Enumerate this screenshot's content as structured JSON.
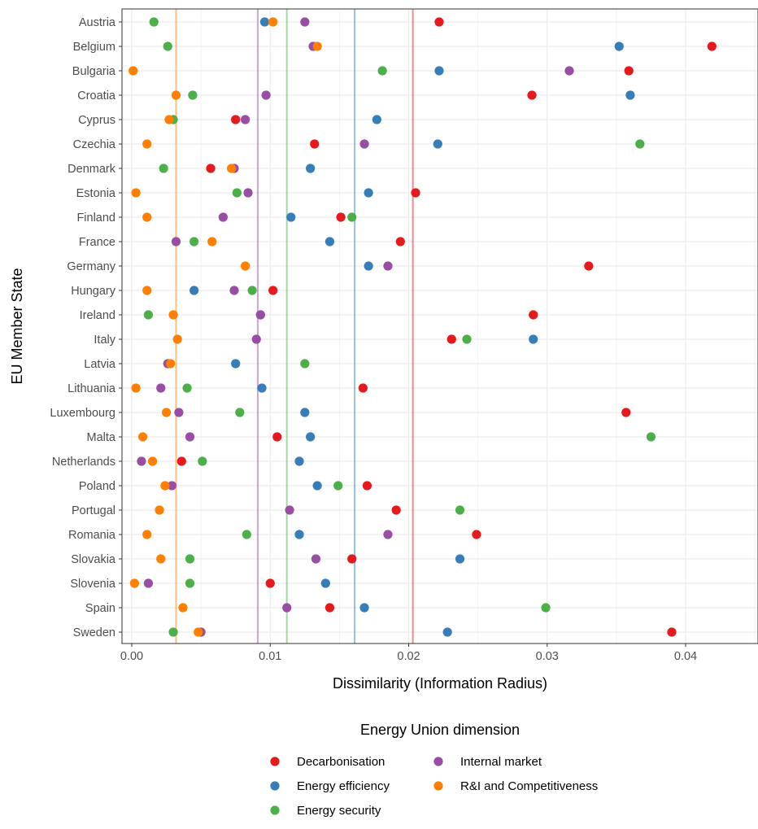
{
  "chart_data": {
    "type": "scatter",
    "xlabel": "Dissimilarity (Information Radius)",
    "ylabel": "EU Member State",
    "xlim": [
      -0.0007,
      0.0446
    ],
    "x_ticks": [
      0,
      0.01,
      0.02,
      0.03,
      0.04
    ],
    "x_tick_labels": [
      "0.00",
      "0.01",
      "0.02",
      "0.03",
      "0.04"
    ],
    "grid": true,
    "legend_title": "Energy Union dimension",
    "legend_position": "bottom",
    "categories": [
      "Austria",
      "Belgium",
      "Bulgaria",
      "Croatia",
      "Cyprus",
      "Czechia",
      "Denmark",
      "Estonia",
      "Finland",
      "France",
      "Germany",
      "Hungary",
      "Ireland",
      "Italy",
      "Latvia",
      "Lithuania",
      "Luxembourg",
      "Malta",
      "Netherlands",
      "Poland",
      "Portugal",
      "Romania",
      "Slovakia",
      "Slovenia",
      "Spain",
      "Sweden"
    ],
    "series": [
      {
        "name": "Decarbonisation",
        "color": "#e41a1c",
        "mean": 0.0203,
        "values": [
          0.0222,
          0.0419,
          0.0359,
          0.0289,
          0.0075,
          0.0132,
          0.0057,
          0.0205,
          0.0151,
          0.0194,
          0.033,
          0.0102,
          0.029,
          0.0231,
          null,
          0.0167,
          0.0357,
          0.0105,
          0.0036,
          0.017,
          0.0191,
          0.0249,
          0.0159,
          0.01,
          0.0143,
          0.039
        ]
      },
      {
        "name": "Energy efficiency",
        "color": "#377eb8",
        "mean": 0.0161,
        "values": [
          0.0096,
          0.0352,
          0.0222,
          0.036,
          0.0177,
          0.0221,
          0.0129,
          0.0171,
          0.0115,
          0.0143,
          0.0171,
          0.0045,
          0.0093,
          0.029,
          0.0075,
          0.0094,
          0.0125,
          0.0129,
          0.0121,
          0.0134,
          null,
          0.0121,
          0.0237,
          0.014,
          0.0168,
          0.0228
        ]
      },
      {
        "name": "Energy security",
        "color": "#4daf4a",
        "mean": 0.0112,
        "values": [
          0.0016,
          0.0026,
          0.0181,
          0.0044,
          0.003,
          0.0367,
          0.0023,
          0.0076,
          0.0159,
          0.0045,
          null,
          0.0087,
          0.0012,
          0.0242,
          0.0125,
          0.004,
          0.0078,
          0.0375,
          0.0051,
          0.0149,
          0.0237,
          0.0083,
          0.0042,
          0.0042,
          0.0299,
          0.003
        ]
      },
      {
        "name": "Internal market",
        "color": "#984ea3",
        "mean": 0.0091,
        "values": [
          0.0125,
          0.0131,
          0.0316,
          0.0097,
          0.0082,
          0.0168,
          0.0074,
          0.0084,
          0.0066,
          0.0032,
          0.0185,
          0.0074,
          0.0093,
          0.009,
          0.0026,
          0.0021,
          0.0034,
          0.0042,
          0.0007,
          0.0029,
          0.0114,
          0.0185,
          0.0133,
          0.0012,
          0.0112,
          0.005
        ]
      },
      {
        "name": "R&I and Competitiveness",
        "color": "#ff7f00",
        "mean": 0.0032,
        "values": [
          0.0102,
          0.0134,
          0.0001,
          0.0032,
          0.0027,
          0.0011,
          0.0072,
          0.0003,
          0.0011,
          0.0058,
          0.0082,
          0.0011,
          0.003,
          0.0033,
          0.0028,
          0.0003,
          0.0025,
          0.0008,
          0.0015,
          0.0024,
          0.002,
          0.0011,
          0.0021,
          0.0002,
          0.0037,
          0.0048
        ]
      }
    ]
  }
}
